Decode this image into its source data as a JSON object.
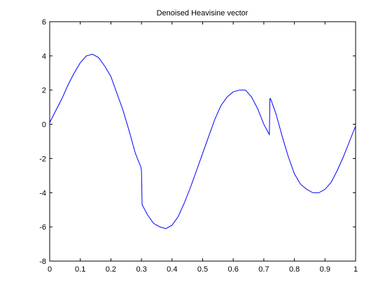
{
  "chart_data": {
    "type": "line",
    "title": "Denoised Heavisine vector",
    "xlabel": "",
    "ylabel": "",
    "xlim": [
      0,
      1
    ],
    "ylim": [
      -8,
      6
    ],
    "grid": false,
    "x_ticks": [
      0,
      0.1,
      0.2,
      0.3,
      0.4,
      0.5,
      0.6,
      0.7,
      0.8,
      0.9,
      1
    ],
    "x_tick_labels": [
      "0",
      "0.1",
      "0.2",
      "0.3",
      "0.4",
      "0.5",
      "0.6",
      "0.7",
      "0.8",
      "0.9",
      "1"
    ],
    "y_ticks": [
      -8,
      -6,
      -4,
      -2,
      0,
      2,
      4,
      6
    ],
    "y_tick_labels": [
      "-8",
      "-6",
      "-4",
      "-2",
      "0",
      "2",
      "4",
      "6"
    ],
    "series": [
      {
        "name": "",
        "color": "#0000ff",
        "x": [
          0,
          0.02,
          0.04,
          0.06,
          0.08,
          0.1,
          0.12,
          0.14,
          0.16,
          0.18,
          0.2,
          0.22,
          0.24,
          0.26,
          0.28,
          0.298,
          0.3,
          0.302,
          0.32,
          0.34,
          0.36,
          0.38,
          0.4,
          0.42,
          0.44,
          0.46,
          0.48,
          0.5,
          0.52,
          0.54,
          0.56,
          0.58,
          0.6,
          0.62,
          0.64,
          0.66,
          0.68,
          0.7,
          0.718,
          0.72,
          0.722,
          0.74,
          0.76,
          0.78,
          0.8,
          0.82,
          0.84,
          0.86,
          0.88,
          0.9,
          0.92,
          0.94,
          0.96,
          0.98,
          1.0
        ],
        "y": [
          0.1,
          0.8,
          1.5,
          2.3,
          3.0,
          3.6,
          4.0,
          4.1,
          3.9,
          3.4,
          2.8,
          1.8,
          0.8,
          -0.4,
          -1.7,
          -2.5,
          -2.7,
          -4.7,
          -5.3,
          -5.8,
          -6.0,
          -6.1,
          -5.9,
          -5.4,
          -4.6,
          -3.7,
          -2.7,
          -1.7,
          -0.7,
          0.3,
          1.1,
          1.6,
          1.9,
          2.0,
          2.0,
          1.6,
          0.9,
          0.0,
          -0.6,
          1.5,
          1.5,
          0.6,
          -0.7,
          -1.9,
          -2.9,
          -3.5,
          -3.8,
          -4.0,
          -4.0,
          -3.8,
          -3.4,
          -2.7,
          -1.9,
          -1.0,
          -0.1
        ]
      }
    ]
  }
}
